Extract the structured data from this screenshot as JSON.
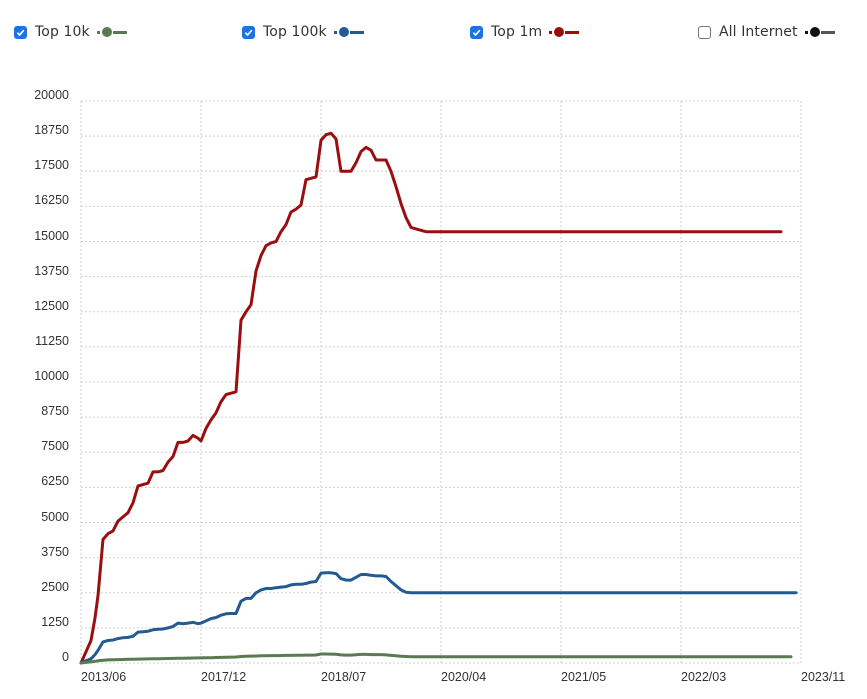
{
  "legend": {
    "items": [
      {
        "label": "Top 10k",
        "checked": true,
        "color": "#5a7a52"
      },
      {
        "label": "Top 100k",
        "checked": true,
        "color": "#245a92"
      },
      {
        "label": "Top 1m",
        "checked": true,
        "color": "#990f0f"
      },
      {
        "label": "All Internet",
        "checked": false,
        "color": "#111111"
      }
    ]
  },
  "chart_data": {
    "type": "line",
    "title": "",
    "xlabel": "",
    "ylabel": "",
    "ylim": [
      0,
      20000
    ],
    "yticks": [
      "0",
      "1250",
      "2500",
      "3750",
      "5000",
      "6250",
      "7500",
      "8750",
      "10000",
      "11250",
      "12500",
      "13750",
      "15000",
      "16250",
      "17500",
      "18750",
      "20000"
    ],
    "xticks": [
      "2013/06",
      "2017/12",
      "2018/07",
      "2020/04",
      "2021/05",
      "2022/03",
      "2023/11"
    ],
    "grid": true,
    "legend_position": "top",
    "x_index": [
      0,
      5,
      10,
      14,
      17,
      22,
      27,
      32,
      37,
      42,
      47,
      52,
      57,
      62,
      67,
      72,
      77,
      82,
      87,
      92,
      97,
      102,
      107,
      112,
      117,
      120,
      125,
      130,
      135,
      140,
      145,
      150,
      155,
      160,
      165,
      170,
      175,
      180,
      185,
      190,
      195,
      200,
      205,
      210,
      215,
      220,
      225,
      230,
      235,
      240,
      245,
      250,
      255,
      260,
      265,
      270,
      275,
      280,
      285,
      290,
      295,
      300,
      305,
      310,
      315,
      320,
      325,
      330,
      335,
      340,
      345,
      350,
      355,
      360,
      365,
      370,
      375,
      380,
      385,
      390,
      395,
      400,
      405,
      410,
      415,
      420,
      425,
      430,
      435,
      440,
      445,
      450,
      455,
      460,
      465,
      470,
      475,
      480,
      485,
      490,
      495,
      500,
      505,
      510,
      515,
      520,
      525,
      530,
      535,
      540,
      545,
      550,
      555,
      560,
      565,
      570,
      575,
      580,
      585,
      590,
      595,
      600,
      605,
      610,
      615,
      620,
      625,
      630,
      635,
      640,
      645,
      650,
      655,
      660,
      665,
      670,
      675,
      680,
      685,
      690,
      695,
      700,
      705,
      710,
      715,
      720
    ],
    "series": [
      {
        "name": "Top 1m",
        "color": "#990f0f",
        "values": [
          0,
          400,
          800,
          1600,
          2400,
          4400,
          4600,
          4700,
          5050,
          5200,
          5350,
          5700,
          6300,
          6350,
          6400,
          6800,
          6800,
          6850,
          7150,
          7350,
          7850,
          7850,
          7900,
          8100,
          8000,
          7900,
          8350,
          8650,
          8900,
          9300,
          9550,
          9600,
          9650,
          12200,
          12500,
          12750,
          13950,
          14500,
          14850,
          14950,
          15000,
          15350,
          15600,
          16050,
          16150,
          16300,
          17200,
          17250,
          17300,
          18600,
          18800,
          18850,
          18650,
          17500,
          17500,
          17500,
          17800,
          18200,
          18350,
          18250,
          17900,
          17900,
          17900,
          17500,
          16950,
          16350,
          15850,
          15500,
          15450,
          15400,
          15350,
          15350,
          15350,
          15350,
          15350,
          15350,
          15350,
          15350,
          15350,
          15350,
          15350,
          15350,
          15350,
          15350,
          15350,
          15350,
          15350,
          15350,
          15350,
          15350,
          15350,
          15350,
          15350,
          15350,
          15350,
          15350,
          15350,
          15350,
          15350,
          15350,
          15350,
          15350,
          15350,
          15350,
          15350,
          15350,
          15350,
          15350,
          15350,
          15350,
          15350,
          15350,
          15350,
          15350,
          15350,
          15350,
          15350,
          15350,
          15350,
          15350,
          15350,
          15350,
          15350,
          15350,
          15350,
          15350,
          15350,
          15350,
          15350,
          15350,
          15350,
          15350,
          15350,
          15350,
          15350,
          15350,
          15350,
          15350,
          15350,
          15350,
          15350,
          15350
        ]
      },
      {
        "name": "Top 100k",
        "color": "#245a92",
        "values": [
          0,
          80,
          150,
          300,
          450,
          750,
          800,
          820,
          870,
          900,
          910,
          950,
          1100,
          1110,
          1130,
          1180,
          1200,
          1210,
          1250,
          1300,
          1420,
          1400,
          1420,
          1450,
          1400,
          1420,
          1500,
          1580,
          1620,
          1700,
          1750,
          1760,
          1760,
          2200,
          2300,
          2300,
          2500,
          2600,
          2650,
          2650,
          2680,
          2700,
          2720,
          2780,
          2800,
          2800,
          2830,
          2880,
          2900,
          3200,
          3210,
          3210,
          3180,
          3000,
          2950,
          2950,
          3050,
          3150,
          3150,
          3120,
          3100,
          3100,
          3080,
          2900,
          2750,
          2600,
          2520,
          2500,
          2500,
          2500,
          2500,
          2500,
          2500,
          2500,
          2500,
          2500,
          2500,
          2500,
          2500,
          2500,
          2500,
          2500,
          2500,
          2500,
          2500,
          2500,
          2500,
          2500,
          2500,
          2500,
          2500,
          2500,
          2500,
          2500,
          2500,
          2500,
          2500,
          2500,
          2500,
          2500,
          2500,
          2500,
          2500,
          2500,
          2500,
          2500,
          2500,
          2500,
          2500,
          2500,
          2500,
          2500,
          2500,
          2500,
          2500,
          2500,
          2500,
          2500,
          2500,
          2500,
          2500,
          2500,
          2500,
          2500,
          2500,
          2500,
          2500,
          2500,
          2500,
          2500,
          2500,
          2500,
          2500,
          2500,
          2500,
          2500,
          2500,
          2500,
          2500,
          2500,
          2500,
          2500,
          2500,
          2500,
          2500
        ]
      },
      {
        "name": "Top 10k",
        "color": "#5a7a52",
        "values": [
          0,
          20,
          40,
          60,
          80,
          100,
          110,
          115,
          120,
          125,
          130,
          135,
          140,
          142,
          145,
          150,
          152,
          155,
          160,
          165,
          170,
          172,
          175,
          178,
          180,
          182,
          185,
          190,
          195,
          200,
          205,
          210,
          215,
          230,
          240,
          245,
          250,
          255,
          260,
          262,
          265,
          268,
          270,
          272,
          275,
          278,
          280,
          282,
          285,
          320,
          320,
          318,
          310,
          290,
          280,
          280,
          295,
          305,
          305,
          300,
          300,
          298,
          290,
          270,
          255,
          240,
          230,
          225,
          225,
          225,
          225,
          225,
          225,
          225,
          225,
          225,
          225,
          225,
          225,
          225,
          225,
          225,
          225,
          225,
          225,
          225,
          225,
          225,
          225,
          225,
          225,
          225,
          225,
          225,
          225,
          225,
          225,
          225,
          225,
          225,
          225,
          225,
          225,
          225,
          225,
          225,
          225,
          225,
          225,
          225,
          225,
          225,
          225,
          225,
          225,
          225,
          225,
          225,
          225,
          225,
          225,
          225,
          225,
          225,
          225,
          225,
          225,
          225,
          225,
          225,
          225,
          225,
          225,
          225,
          225,
          225,
          225,
          225,
          225,
          225,
          225,
          225,
          225,
          225
        ]
      }
    ]
  }
}
